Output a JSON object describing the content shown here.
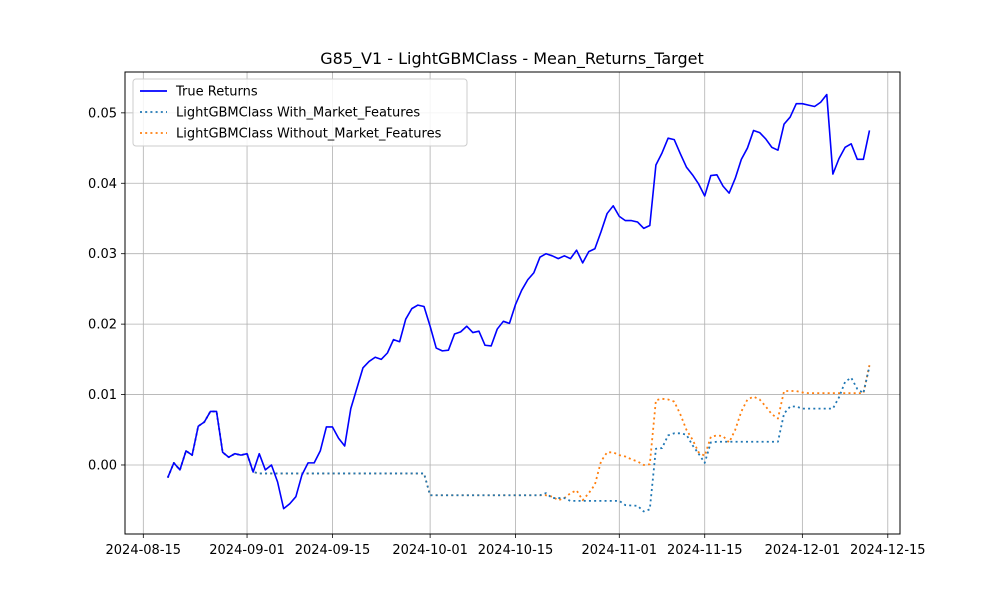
{
  "chart_data": {
    "type": "line",
    "title": "G85_V1 - LightGBMClass - Mean_Returns_Target",
    "xlabel": "",
    "ylabel": "",
    "grid": true,
    "legend_position": "upper-left",
    "x_ticks": [
      "2024-08-15",
      "2024-09-01",
      "2024-09-15",
      "2024-10-01",
      "2024-10-15",
      "2024-11-01",
      "2024-11-15",
      "2024-12-01",
      "2024-12-15"
    ],
    "y_ticks": [
      "0.00",
      "0.01",
      "0.02",
      "0.03",
      "0.04",
      "0.05"
    ],
    "xlim": [
      "2024-08-12",
      "2024-12-17"
    ],
    "ylim": [
      -0.0098,
      0.0558
    ],
    "colors": {
      "true": "#0000ff",
      "with": "#1f77b4",
      "without": "#ff7f0e"
    },
    "series": [
      {
        "name": "True Returns",
        "style": "solid",
        "color": "#0000ff",
        "points": [
          [
            "2024-08-19",
            -0.0018
          ],
          [
            "2024-08-20",
            0.0003
          ],
          [
            "2024-08-21",
            -0.0007
          ],
          [
            "2024-08-22",
            0.002
          ],
          [
            "2024-08-23",
            0.0014
          ],
          [
            "2024-08-24",
            0.0055
          ],
          [
            "2024-08-25",
            0.0061
          ],
          [
            "2024-08-26",
            0.0076
          ],
          [
            "2024-08-27",
            0.0076
          ],
          [
            "2024-08-28",
            0.0018
          ],
          [
            "2024-08-29",
            0.0011
          ],
          [
            "2024-08-30",
            0.0016
          ],
          [
            "2024-08-31",
            0.0014
          ],
          [
            "2024-09-01",
            0.0016
          ],
          [
            "2024-09-02",
            -0.001
          ],
          [
            "2024-09-03",
            0.0016
          ],
          [
            "2024-09-04",
            -0.0007
          ],
          [
            "2024-09-05",
            0.0
          ],
          [
            "2024-09-06",
            -0.0024
          ],
          [
            "2024-09-07",
            -0.0062
          ],
          [
            "2024-09-08",
            -0.0055
          ],
          [
            "2024-09-09",
            -0.0045
          ],
          [
            "2024-09-10",
            -0.0014
          ],
          [
            "2024-09-11",
            0.0003
          ],
          [
            "2024-09-12",
            0.0003
          ],
          [
            "2024-09-13",
            0.002
          ],
          [
            "2024-09-14",
            0.0054
          ],
          [
            "2024-09-15",
            0.0054
          ],
          [
            "2024-09-16",
            0.0038
          ],
          [
            "2024-09-17",
            0.0027
          ],
          [
            "2024-09-18",
            0.008
          ],
          [
            "2024-09-19",
            0.0109
          ],
          [
            "2024-09-20",
            0.0138
          ],
          [
            "2024-09-21",
            0.0147
          ],
          [
            "2024-09-22",
            0.0153
          ],
          [
            "2024-09-23",
            0.015
          ],
          [
            "2024-09-24",
            0.0159
          ],
          [
            "2024-09-25",
            0.0178
          ],
          [
            "2024-09-26",
            0.0175
          ],
          [
            "2024-09-27",
            0.0207
          ],
          [
            "2024-09-28",
            0.0222
          ],
          [
            "2024-09-29",
            0.0227
          ],
          [
            "2024-09-30",
            0.0225
          ],
          [
            "2024-10-01",
            0.0197
          ],
          [
            "2024-10-02",
            0.0166
          ],
          [
            "2024-10-03",
            0.0162
          ],
          [
            "2024-10-04",
            0.0163
          ],
          [
            "2024-10-05",
            0.0186
          ],
          [
            "2024-10-06",
            0.0189
          ],
          [
            "2024-10-07",
            0.0197
          ],
          [
            "2024-10-08",
            0.0188
          ],
          [
            "2024-10-09",
            0.019
          ],
          [
            "2024-10-10",
            0.017
          ],
          [
            "2024-10-11",
            0.0169
          ],
          [
            "2024-10-12",
            0.0193
          ],
          [
            "2024-10-13",
            0.0204
          ],
          [
            "2024-10-14",
            0.0201
          ],
          [
            "2024-10-15",
            0.0228
          ],
          [
            "2024-10-16",
            0.0248
          ],
          [
            "2024-10-17",
            0.0263
          ],
          [
            "2024-10-18",
            0.0273
          ],
          [
            "2024-10-19",
            0.0295
          ],
          [
            "2024-10-20",
            0.03
          ],
          [
            "2024-10-21",
            0.0297
          ],
          [
            "2024-10-22",
            0.0293
          ],
          [
            "2024-10-23",
            0.0297
          ],
          [
            "2024-10-24",
            0.0293
          ],
          [
            "2024-10-25",
            0.0305
          ],
          [
            "2024-10-26",
            0.0287
          ],
          [
            "2024-10-27",
            0.0303
          ],
          [
            "2024-10-28",
            0.0307
          ],
          [
            "2024-10-29",
            0.0331
          ],
          [
            "2024-10-30",
            0.0357
          ],
          [
            "2024-10-31",
            0.0368
          ],
          [
            "2024-11-01",
            0.0353
          ],
          [
            "2024-11-02",
            0.0347
          ],
          [
            "2024-11-03",
            0.0347
          ],
          [
            "2024-11-04",
            0.0345
          ],
          [
            "2024-11-05",
            0.0336
          ],
          [
            "2024-11-06",
            0.034
          ],
          [
            "2024-11-07",
            0.0426
          ],
          [
            "2024-11-08",
            0.0443
          ],
          [
            "2024-11-09",
            0.0464
          ],
          [
            "2024-11-10",
            0.0462
          ],
          [
            "2024-11-11",
            0.0442
          ],
          [
            "2024-11-12",
            0.0423
          ],
          [
            "2024-11-13",
            0.0412
          ],
          [
            "2024-11-14",
            0.0399
          ],
          [
            "2024-11-15",
            0.0382
          ],
          [
            "2024-11-16",
            0.0411
          ],
          [
            "2024-11-17",
            0.0412
          ],
          [
            "2024-11-18",
            0.0396
          ],
          [
            "2024-11-19",
            0.0386
          ],
          [
            "2024-11-20",
            0.0407
          ],
          [
            "2024-11-21",
            0.0434
          ],
          [
            "2024-11-22",
            0.045
          ],
          [
            "2024-11-23",
            0.0475
          ],
          [
            "2024-11-24",
            0.0472
          ],
          [
            "2024-11-25",
            0.0463
          ],
          [
            "2024-11-26",
            0.0451
          ],
          [
            "2024-11-27",
            0.0447
          ],
          [
            "2024-11-28",
            0.0484
          ],
          [
            "2024-11-29",
            0.0494
          ],
          [
            "2024-11-30",
            0.0513
          ],
          [
            "2024-12-01",
            0.0513
          ],
          [
            "2024-12-02",
            0.0511
          ],
          [
            "2024-12-03",
            0.0509
          ],
          [
            "2024-12-04",
            0.0515
          ],
          [
            "2024-12-05",
            0.0526
          ],
          [
            "2024-12-06",
            0.0413
          ],
          [
            "2024-12-07",
            0.0435
          ],
          [
            "2024-12-08",
            0.0451
          ],
          [
            "2024-12-09",
            0.0456
          ],
          [
            "2024-12-10",
            0.0434
          ],
          [
            "2024-12-11",
            0.0434
          ],
          [
            "2024-12-12",
            0.0475
          ]
        ]
      },
      {
        "name": "LightGBMClass With_Market_Features",
        "style": "dotted",
        "color": "#1f77b4",
        "points": [
          [
            "2024-08-19",
            -0.0018
          ],
          [
            "2024-08-20",
            0.0003
          ],
          [
            "2024-08-21",
            -0.0007
          ],
          [
            "2024-08-22",
            0.002
          ],
          [
            "2024-08-23",
            0.0014
          ],
          [
            "2024-08-24",
            0.0055
          ],
          [
            "2024-08-25",
            0.0061
          ],
          [
            "2024-08-26",
            0.0076
          ],
          [
            "2024-08-27",
            0.0076
          ],
          [
            "2024-08-28",
            0.0018
          ],
          [
            "2024-08-29",
            0.0011
          ],
          [
            "2024-08-30",
            0.0016
          ],
          [
            "2024-08-31",
            0.0014
          ],
          [
            "2024-09-01",
            0.0016
          ],
          [
            "2024-09-02",
            -0.001
          ],
          [
            "2024-09-03",
            -0.0012
          ],
          [
            "2024-09-30",
            -0.0012
          ],
          [
            "2024-10-01",
            -0.0043
          ],
          [
            "2024-10-19",
            -0.0043
          ],
          [
            "2024-10-20",
            -0.004
          ],
          [
            "2024-10-21",
            -0.0047
          ],
          [
            "2024-10-22",
            -0.0047
          ],
          [
            "2024-10-23",
            -0.0047
          ],
          [
            "2024-10-24",
            -0.0051
          ],
          [
            "2024-10-28",
            -0.0051
          ],
          [
            "2024-11-01",
            -0.0051
          ],
          [
            "2024-11-02",
            -0.0057
          ],
          [
            "2024-11-04",
            -0.0058
          ],
          [
            "2024-11-05",
            -0.0066
          ],
          [
            "2024-11-06",
            -0.0063
          ],
          [
            "2024-11-07",
            0.0023
          ],
          [
            "2024-11-08",
            0.0024
          ],
          [
            "2024-11-09",
            0.0042
          ],
          [
            "2024-11-10",
            0.0045
          ],
          [
            "2024-11-11",
            0.0045
          ],
          [
            "2024-11-12",
            0.0043
          ],
          [
            "2024-11-13",
            0.0028
          ],
          [
            "2024-11-14",
            0.0016
          ],
          [
            "2024-11-15",
            0.0003
          ],
          [
            "2024-11-16",
            0.0032
          ],
          [
            "2024-11-17",
            0.0033
          ],
          [
            "2024-11-26",
            0.0033
          ],
          [
            "2024-11-27",
            0.0033
          ],
          [
            "2024-11-28",
            0.0073
          ],
          [
            "2024-11-29",
            0.0083
          ],
          [
            "2024-11-30",
            0.0083
          ],
          [
            "2024-12-01",
            0.008
          ],
          [
            "2024-12-05",
            0.008
          ],
          [
            "2024-12-06",
            0.008
          ],
          [
            "2024-12-07",
            0.0096
          ],
          [
            "2024-12-08",
            0.0118
          ],
          [
            "2024-12-09",
            0.0124
          ],
          [
            "2024-12-10",
            0.0108
          ],
          [
            "2024-12-11",
            0.0102
          ],
          [
            "2024-12-12",
            0.014
          ]
        ]
      },
      {
        "name": "LightGBMClass Without_Market_Features",
        "style": "dotted",
        "color": "#ff7f0e",
        "points": [
          [
            "2024-08-19",
            -0.0018
          ],
          [
            "2024-08-20",
            0.0003
          ],
          [
            "2024-08-21",
            -0.0007
          ],
          [
            "2024-08-22",
            0.002
          ],
          [
            "2024-08-23",
            0.0014
          ],
          [
            "2024-08-24",
            0.0055
          ],
          [
            "2024-08-25",
            0.0061
          ],
          [
            "2024-08-26",
            0.0076
          ],
          [
            "2024-08-27",
            0.0076
          ],
          [
            "2024-08-28",
            0.0018
          ],
          [
            "2024-08-29",
            0.0011
          ],
          [
            "2024-08-30",
            0.0016
          ],
          [
            "2024-08-31",
            0.0014
          ],
          [
            "2024-09-01",
            0.0016
          ],
          [
            "2024-09-02",
            -0.001
          ],
          [
            "2024-09-03",
            -0.0012
          ],
          [
            "2024-09-30",
            -0.0012
          ],
          [
            "2024-10-01",
            -0.0043
          ],
          [
            "2024-10-19",
            -0.0043
          ],
          [
            "2024-10-20",
            -0.0043
          ],
          [
            "2024-10-21",
            -0.0045
          ],
          [
            "2024-10-22",
            -0.005
          ],
          [
            "2024-10-23",
            -0.0047
          ],
          [
            "2024-10-24",
            -0.004
          ],
          [
            "2024-10-25",
            -0.0036
          ],
          [
            "2024-10-26",
            -0.005
          ],
          [
            "2024-10-27",
            -0.004
          ],
          [
            "2024-10-28",
            -0.0028
          ],
          [
            "2024-10-29",
            0.0005
          ],
          [
            "2024-10-30",
            0.0018
          ],
          [
            "2024-10-31",
            0.0018
          ],
          [
            "2024-11-01",
            0.0014
          ],
          [
            "2024-11-02",
            0.0012
          ],
          [
            "2024-11-03",
            0.0008
          ],
          [
            "2024-11-04",
            0.0005
          ],
          [
            "2024-11-05",
            0.0
          ],
          [
            "2024-11-06",
            0.0001
          ],
          [
            "2024-11-07",
            0.0092
          ],
          [
            "2024-11-08",
            0.0094
          ],
          [
            "2024-11-09",
            0.0093
          ],
          [
            "2024-11-10",
            0.009
          ],
          [
            "2024-11-11",
            0.0072
          ],
          [
            "2024-11-12",
            0.005
          ],
          [
            "2024-11-13",
            0.0036
          ],
          [
            "2024-11-14",
            0.0018
          ],
          [
            "2024-11-15",
            0.0013
          ],
          [
            "2024-11-16",
            0.004
          ],
          [
            "2024-11-17",
            0.0042
          ],
          [
            "2024-11-18",
            0.0041
          ],
          [
            "2024-11-19",
            0.0032
          ],
          [
            "2024-11-20",
            0.005
          ],
          [
            "2024-11-21",
            0.0076
          ],
          [
            "2024-11-22",
            0.0093
          ],
          [
            "2024-11-23",
            0.0097
          ],
          [
            "2024-11-24",
            0.0093
          ],
          [
            "2024-11-25",
            0.0083
          ],
          [
            "2024-11-26",
            0.0072
          ],
          [
            "2024-11-27",
            0.0066
          ],
          [
            "2024-11-28",
            0.0105
          ],
          [
            "2024-11-29",
            0.0105
          ],
          [
            "2024-11-30",
            0.0105
          ],
          [
            "2024-12-01",
            0.0103
          ],
          [
            "2024-12-02",
            0.0102
          ],
          [
            "2024-12-03",
            0.0102
          ],
          [
            "2024-12-04",
            0.0102
          ],
          [
            "2024-12-05",
            0.0102
          ],
          [
            "2024-12-06",
            0.0102
          ],
          [
            "2024-12-07",
            0.0102
          ],
          [
            "2024-12-08",
            0.0102
          ],
          [
            "2024-12-09",
            0.0102
          ],
          [
            "2024-12-10",
            0.0102
          ],
          [
            "2024-12-11",
            0.0102
          ],
          [
            "2024-12-12",
            0.0142
          ]
        ]
      }
    ]
  }
}
